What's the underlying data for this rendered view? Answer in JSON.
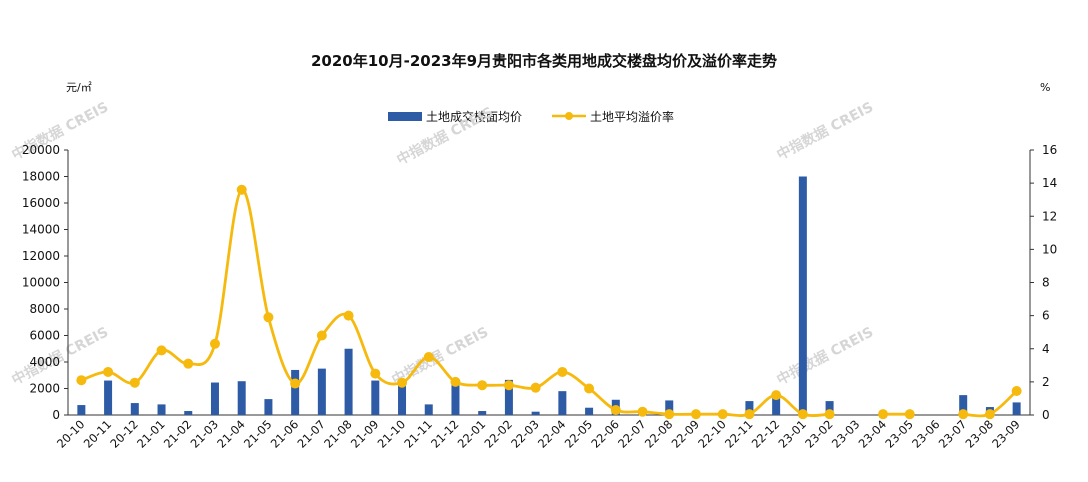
{
  "chart_data": {
    "type": "bar+line",
    "title": "2020年10月-2023年9月贵阳市各类用地成交楼盘均价及溢价率走势",
    "y_left_unit": "元/㎡",
    "y_right_unit": "%",
    "y_left_ticks": [
      "0",
      "2000",
      "4000",
      "6000",
      "8000",
      "10000",
      "12000",
      "14000",
      "16000",
      "18000",
      "20000"
    ],
    "y_right_ticks": [
      "0",
      "2",
      "4",
      "6",
      "8",
      "10",
      "12",
      "14",
      "16"
    ],
    "ylim_left": [
      0,
      20000
    ],
    "ylim_right": [
      0,
      16
    ],
    "categories": [
      "20-10",
      "20-11",
      "20-12",
      "21-01",
      "21-02",
      "21-03",
      "21-04",
      "21-05",
      "21-06",
      "21-07",
      "21-08",
      "21-09",
      "21-10",
      "21-11",
      "21-12",
      "22-01",
      "22-02",
      "22-03",
      "22-04",
      "22-05",
      "22-06",
      "22-07",
      "22-08",
      "22-09",
      "22-10",
      "22-11",
      "22-12",
      "23-01",
      "23-02",
      "23-03",
      "23-04",
      "23-05",
      "23-06",
      "23-07",
      "23-08",
      "23-09"
    ],
    "series": [
      {
        "name": "土地成交楼面均价",
        "kind": "bar",
        "axis": "left",
        "color": "#2e5ba6",
        "values": [
          750,
          2600,
          900,
          800,
          300,
          2450,
          2550,
          1200,
          3400,
          3500,
          5000,
          2600,
          2500,
          800,
          2250,
          300,
          2650,
          250,
          1800,
          550,
          1150,
          0,
          1100,
          0,
          0,
          1050,
          1650,
          18000,
          1050,
          0,
          0,
          0,
          0,
          1500,
          600,
          950
        ]
      },
      {
        "name": "土地平均溢价率",
        "kind": "line",
        "axis": "right",
        "color": "#f6b90e",
        "values": [
          2.1,
          2.6,
          1.95,
          3.9,
          3.1,
          4.3,
          13.6,
          5.9,
          1.9,
          4.8,
          6.0,
          2.5,
          1.95,
          3.5,
          2.0,
          1.8,
          1.8,
          1.65,
          2.6,
          1.6,
          0.3,
          0.2,
          0.05,
          0.05,
          0.05,
          0.05,
          1.2,
          0.05,
          0.05,
          null,
          0.05,
          0.05,
          null,
          0.05,
          0.05,
          1.45
        ]
      }
    ],
    "legend_position": "top-center",
    "grid": false
  },
  "watermark": "中指数据 CREIS"
}
